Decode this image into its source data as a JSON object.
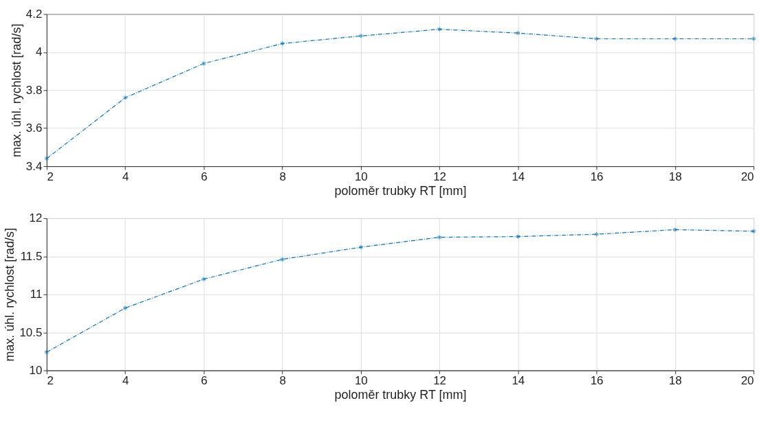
{
  "chart_data": [
    {
      "type": "line",
      "xlabel": "poloměr trubky RT [mm]",
      "ylabel": "max. úhl. rychlost [rad/s]",
      "x": [
        2,
        4,
        6,
        8,
        10,
        12,
        14,
        16,
        18,
        20
      ],
      "series": [
        {
          "color": "#0072bd",
          "values": [
            3.44,
            3.76,
            3.94,
            4.045,
            4.085,
            4.12,
            4.1,
            4.07,
            4.07,
            4.07
          ]
        }
      ],
      "xlim": [
        2,
        20
      ],
      "xticks": [
        2,
        4,
        6,
        8,
        10,
        12,
        14,
        16,
        18,
        20
      ],
      "ylim": [
        3.4,
        4.2
      ],
      "yticks": [
        3.4,
        3.6,
        3.8,
        4,
        4.2
      ],
      "grid": true,
      "marker": "cross",
      "line_style": "dashed"
    },
    {
      "type": "line",
      "xlabel": "poloměr trubky RT [mm]",
      "ylabel": "max. úhl. rychlost [rad/s]",
      "x": [
        2,
        4,
        6,
        8,
        10,
        12,
        14,
        16,
        18,
        20
      ],
      "series": [
        {
          "color": "#0072bd",
          "values": [
            10.24,
            10.82,
            11.2,
            11.46,
            11.62,
            11.75,
            11.76,
            11.79,
            11.85,
            11.83
          ]
        }
      ],
      "xlim": [
        2,
        20
      ],
      "xticks": [
        2,
        4,
        6,
        8,
        10,
        12,
        14,
        16,
        18,
        20
      ],
      "ylim": [
        10,
        12
      ],
      "yticks": [
        10,
        10.5,
        11,
        11.5,
        12
      ],
      "grid": true,
      "marker": "cross",
      "line_style": "dashed"
    }
  ]
}
